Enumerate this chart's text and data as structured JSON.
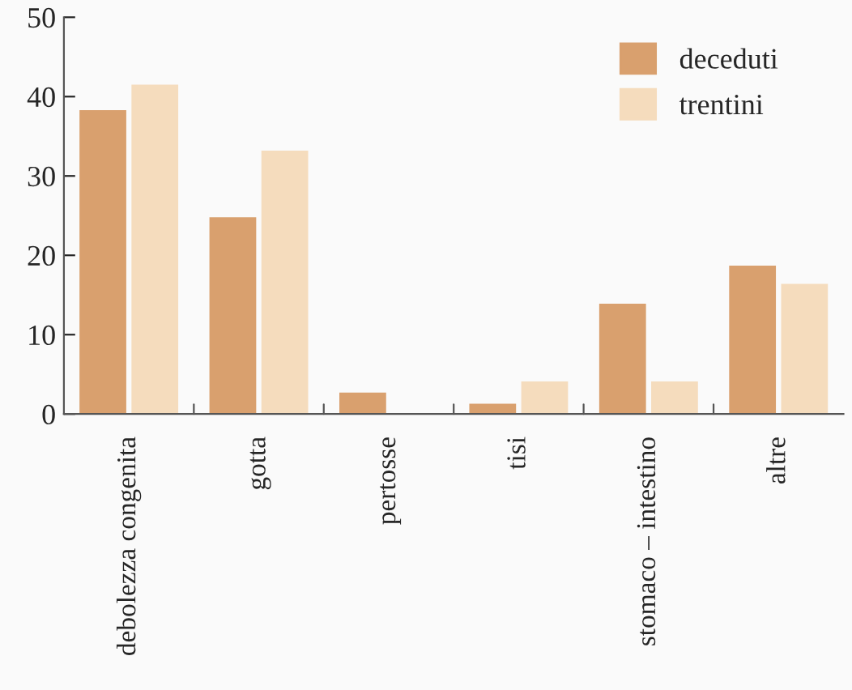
{
  "chart_data": {
    "type": "bar",
    "categories": [
      "debolezza congenita",
      "gotta",
      "pertosse",
      "tisi",
      "stomaco – intestino",
      "altre"
    ],
    "series": [
      {
        "name": "deceduti",
        "color": "#d9a06e",
        "values": [
          38.3,
          24.8,
          2.7,
          1.3,
          13.9,
          18.7
        ]
      },
      {
        "name": "trentini",
        "color": "#f5dcbd",
        "values": [
          41.5,
          33.2,
          0,
          4.1,
          4.1,
          16.4
        ]
      }
    ],
    "ylim": [
      0,
      50
    ],
    "yticks": [
      0,
      10,
      20,
      30,
      40,
      50
    ],
    "grid": false,
    "legend": "top right"
  }
}
